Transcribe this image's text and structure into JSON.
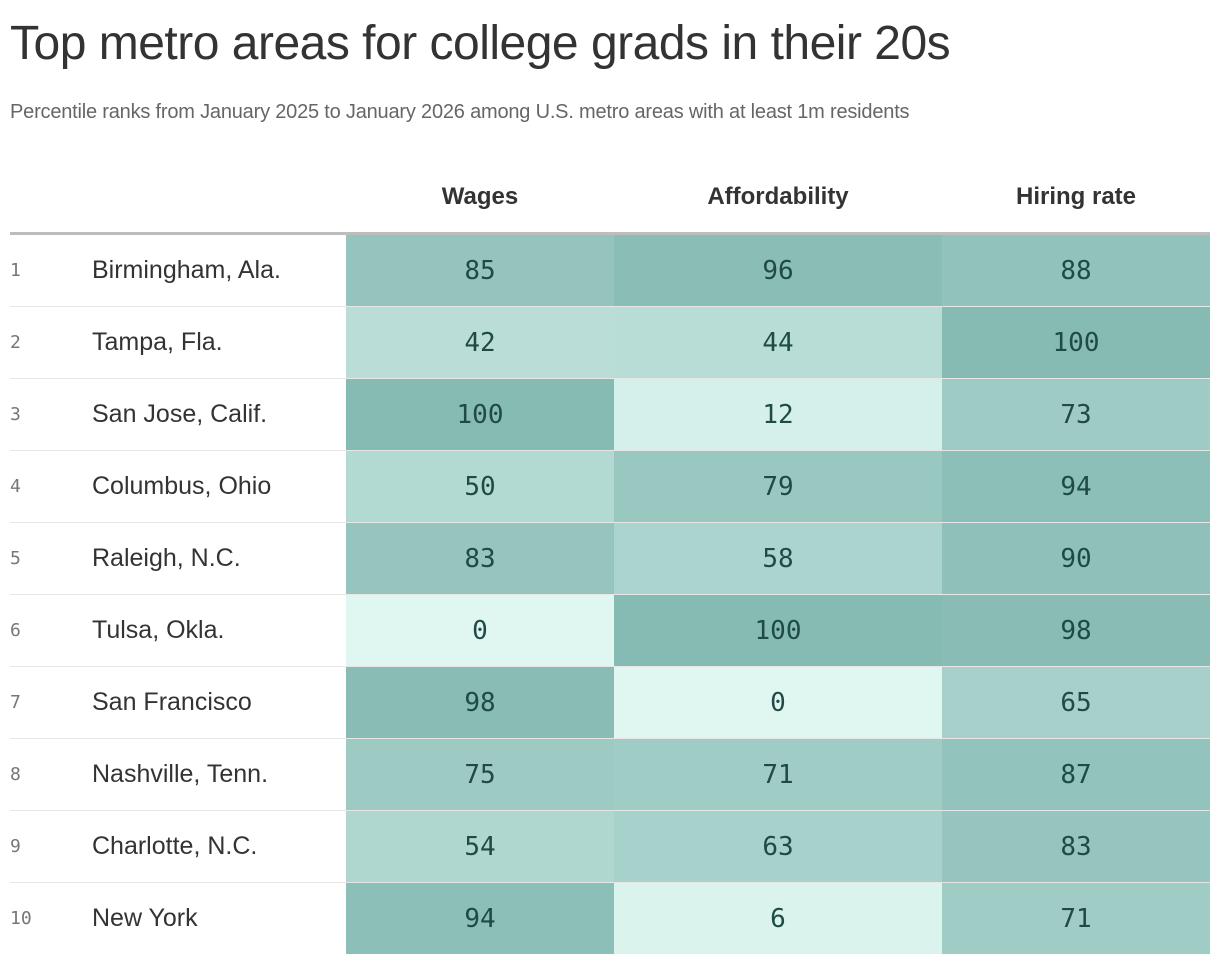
{
  "chart_data": {
    "type": "heatmap",
    "title": "Top metro areas for college grads in their 20s",
    "subtitle": "Percentile ranks from January 2025 to January 2026 among U.S. metro areas with at least 1m residents",
    "columns": [
      "Wages",
      "Affordability",
      "Hiring rate"
    ],
    "color_scale": {
      "min": 0,
      "max": 100,
      "low_color": "#e0f7f1",
      "high_color": "#86bbb4"
    },
    "rows": [
      {
        "rank": "1",
        "metro": "Birmingham, Ala.",
        "values": [
          85,
          96,
          88
        ]
      },
      {
        "rank": "2",
        "metro": "Tampa, Fla.",
        "values": [
          42,
          44,
          100
        ]
      },
      {
        "rank": "3",
        "metro": "San Jose, Calif.",
        "values": [
          100,
          12,
          73
        ]
      },
      {
        "rank": "4",
        "metro": "Columbus, Ohio",
        "values": [
          50,
          79,
          94
        ]
      },
      {
        "rank": "5",
        "metro": "Raleigh, N.C.",
        "values": [
          83,
          58,
          90
        ]
      },
      {
        "rank": "6",
        "metro": "Tulsa, Okla.",
        "values": [
          0,
          100,
          98
        ]
      },
      {
        "rank": "7",
        "metro": "San Francisco",
        "values": [
          98,
          0,
          65
        ]
      },
      {
        "rank": "8",
        "metro": "Nashville, Tenn.",
        "values": [
          75,
          71,
          87
        ]
      },
      {
        "rank": "9",
        "metro": "Charlotte, N.C.",
        "values": [
          54,
          63,
          83
        ]
      },
      {
        "rank": "10",
        "metro": "New York",
        "values": [
          94,
          6,
          71
        ]
      }
    ]
  }
}
